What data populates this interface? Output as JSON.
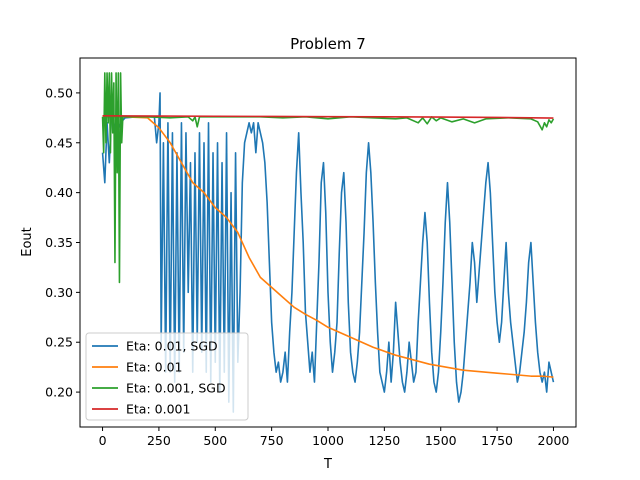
{
  "chart_data": {
    "type": "line",
    "title": "Problem 7",
    "xlabel": "T",
    "ylabel": "Eout",
    "xlim": [
      -100,
      2100
    ],
    "ylim": [
      0.165,
      0.535
    ],
    "xticks": [
      0,
      250,
      500,
      750,
      1000,
      1250,
      1500,
      1750,
      2000
    ],
    "xtick_labels": [
      "0",
      "250",
      "500",
      "750",
      "1000",
      "1250",
      "1500",
      "1750",
      "2000"
    ],
    "yticks": [
      0.2,
      0.25,
      0.3,
      0.35,
      0.4,
      0.45,
      0.5
    ],
    "ytick_labels": [
      "0.20",
      "0.25",
      "0.30",
      "0.35",
      "0.40",
      "0.45",
      "0.50"
    ],
    "grid": false,
    "legend_position": "lower-left",
    "series": [
      {
        "name": "Eta: 0.01, SGD",
        "color": "#1f77b4",
        "x": [
          0,
          10,
          20,
          30,
          40,
          60,
          80,
          100,
          150,
          200,
          230,
          240,
          250,
          255,
          260,
          270,
          280,
          290,
          300,
          310,
          320,
          330,
          340,
          350,
          360,
          370,
          380,
          390,
          400,
          410,
          420,
          430,
          440,
          450,
          460,
          470,
          480,
          490,
          500,
          510,
          520,
          530,
          540,
          550,
          560,
          570,
          580,
          590,
          600,
          610,
          620,
          630,
          640,
          650,
          660,
          670,
          680,
          690,
          700,
          710,
          720,
          730,
          740,
          750,
          760,
          770,
          780,
          790,
          800,
          810,
          820,
          830,
          840,
          850,
          860,
          870,
          880,
          890,
          900,
          910,
          920,
          930,
          940,
          950,
          960,
          970,
          980,
          990,
          1000,
          1010,
          1020,
          1030,
          1040,
          1050,
          1060,
          1070,
          1080,
          1090,
          1100,
          1110,
          1120,
          1130,
          1140,
          1150,
          1160,
          1170,
          1180,
          1190,
          1200,
          1210,
          1220,
          1230,
          1240,
          1250,
          1260,
          1270,
          1280,
          1290,
          1300,
          1310,
          1320,
          1330,
          1340,
          1350,
          1360,
          1370,
          1380,
          1390,
          1400,
          1410,
          1420,
          1430,
          1440,
          1450,
          1460,
          1470,
          1480,
          1490,
          1500,
          1510,
          1520,
          1530,
          1540,
          1550,
          1560,
          1570,
          1580,
          1590,
          1600,
          1610,
          1620,
          1630,
          1640,
          1650,
          1660,
          1670,
          1680,
          1690,
          1700,
          1710,
          1720,
          1730,
          1740,
          1750,
          1760,
          1770,
          1780,
          1790,
          1800,
          1810,
          1820,
          1830,
          1840,
          1850,
          1860,
          1870,
          1880,
          1890,
          1900,
          1910,
          1920,
          1930,
          1940,
          1950,
          1960,
          1970,
          1980,
          1990,
          2000
        ],
        "y": [
          0.44,
          0.41,
          0.47,
          0.43,
          0.48,
          0.46,
          0.47,
          0.475,
          0.476,
          0.476,
          0.476,
          0.45,
          0.47,
          0.5,
          0.25,
          0.45,
          0.22,
          0.47,
          0.22,
          0.46,
          0.21,
          0.44,
          0.22,
          0.47,
          0.24,
          0.46,
          0.3,
          0.43,
          0.22,
          0.44,
          0.25,
          0.46,
          0.24,
          0.45,
          0.22,
          0.47,
          0.21,
          0.44,
          0.23,
          0.45,
          0.2,
          0.43,
          0.22,
          0.46,
          0.19,
          0.4,
          0.18,
          0.44,
          0.23,
          0.3,
          0.41,
          0.45,
          0.46,
          0.47,
          0.46,
          0.47,
          0.44,
          0.47,
          0.46,
          0.45,
          0.43,
          0.39,
          0.33,
          0.27,
          0.24,
          0.22,
          0.23,
          0.21,
          0.22,
          0.24,
          0.21,
          0.26,
          0.3,
          0.36,
          0.42,
          0.46,
          0.4,
          0.35,
          0.28,
          0.25,
          0.22,
          0.24,
          0.21,
          0.27,
          0.33,
          0.41,
          0.43,
          0.38,
          0.3,
          0.25,
          0.22,
          0.24,
          0.27,
          0.34,
          0.4,
          0.42,
          0.37,
          0.29,
          0.24,
          0.22,
          0.21,
          0.23,
          0.26,
          0.31,
          0.36,
          0.42,
          0.45,
          0.42,
          0.37,
          0.31,
          0.26,
          0.22,
          0.21,
          0.2,
          0.22,
          0.25,
          0.21,
          0.24,
          0.29,
          0.26,
          0.23,
          0.21,
          0.2,
          0.22,
          0.25,
          0.23,
          0.21,
          0.22,
          0.27,
          0.31,
          0.35,
          0.38,
          0.35,
          0.29,
          0.24,
          0.21,
          0.2,
          0.22,
          0.26,
          0.31,
          0.37,
          0.41,
          0.37,
          0.31,
          0.25,
          0.21,
          0.19,
          0.2,
          0.22,
          0.25,
          0.28,
          0.31,
          0.35,
          0.33,
          0.29,
          0.32,
          0.35,
          0.38,
          0.41,
          0.43,
          0.4,
          0.35,
          0.3,
          0.27,
          0.25,
          0.27,
          0.31,
          0.35,
          0.3,
          0.27,
          0.25,
          0.23,
          0.21,
          0.22,
          0.24,
          0.26,
          0.29,
          0.33,
          0.35,
          0.31,
          0.27,
          0.24,
          0.22,
          0.21,
          0.22,
          0.2,
          0.23,
          0.22,
          0.21
        ]
      },
      {
        "name": "Eta: 0.01",
        "color": "#ff7f0e",
        "x": [
          0,
          100,
          200,
          250,
          300,
          350,
          400,
          450,
          500,
          550,
          600,
          650,
          700,
          750,
          800,
          850,
          900,
          950,
          1000,
          1050,
          1100,
          1150,
          1200,
          1250,
          1300,
          1350,
          1400,
          1450,
          1500,
          1550,
          1600,
          1650,
          1700,
          1750,
          1800,
          1850,
          1900,
          1950,
          2000
        ],
        "y": [
          0.476,
          0.476,
          0.475,
          0.465,
          0.45,
          0.43,
          0.41,
          0.4,
          0.385,
          0.375,
          0.36,
          0.335,
          0.315,
          0.305,
          0.295,
          0.285,
          0.278,
          0.272,
          0.265,
          0.26,
          0.255,
          0.25,
          0.245,
          0.241,
          0.237,
          0.234,
          0.231,
          0.228,
          0.226,
          0.224,
          0.222,
          0.221,
          0.22,
          0.219,
          0.218,
          0.217,
          0.216,
          0.216,
          0.215
        ]
      },
      {
        "name": "Eta: 0.001, SGD",
        "color": "#2ca02c",
        "x": [
          0,
          5,
          10,
          15,
          20,
          25,
          30,
          35,
          40,
          45,
          50,
          55,
          60,
          65,
          70,
          75,
          80,
          85,
          90,
          100,
          150,
          200,
          300,
          380,
          400,
          410,
          420,
          430,
          440,
          500,
          600,
          700,
          800,
          900,
          1000,
          1100,
          1200,
          1300,
          1350,
          1400,
          1420,
          1440,
          1460,
          1480,
          1500,
          1550,
          1600,
          1650,
          1700,
          1800,
          1900,
          1930,
          1950,
          1960,
          1970,
          1980,
          1990,
          2000
        ],
        "y": [
          0.476,
          0.44,
          0.52,
          0.45,
          0.52,
          0.47,
          0.52,
          0.44,
          0.52,
          0.46,
          0.51,
          0.33,
          0.52,
          0.42,
          0.52,
          0.31,
          0.52,
          0.45,
          0.476,
          0.476,
          0.476,
          0.476,
          0.475,
          0.476,
          0.472,
          0.476,
          0.466,
          0.476,
          0.476,
          0.476,
          0.476,
          0.476,
          0.475,
          0.476,
          0.474,
          0.476,
          0.475,
          0.474,
          0.475,
          0.47,
          0.475,
          0.469,
          0.476,
          0.472,
          0.475,
          0.471,
          0.474,
          0.47,
          0.474,
          0.475,
          0.474,
          0.471,
          0.463,
          0.47,
          0.466,
          0.473,
          0.47,
          0.474
        ]
      },
      {
        "name": "Eta: 0.001",
        "color": "#d62728",
        "x": [
          0,
          250,
          500,
          750,
          1000,
          1250,
          1500,
          1750,
          2000
        ],
        "y": [
          0.477,
          0.4768,
          0.4766,
          0.4764,
          0.4762,
          0.476,
          0.4758,
          0.4754,
          0.4748
        ]
      }
    ]
  }
}
